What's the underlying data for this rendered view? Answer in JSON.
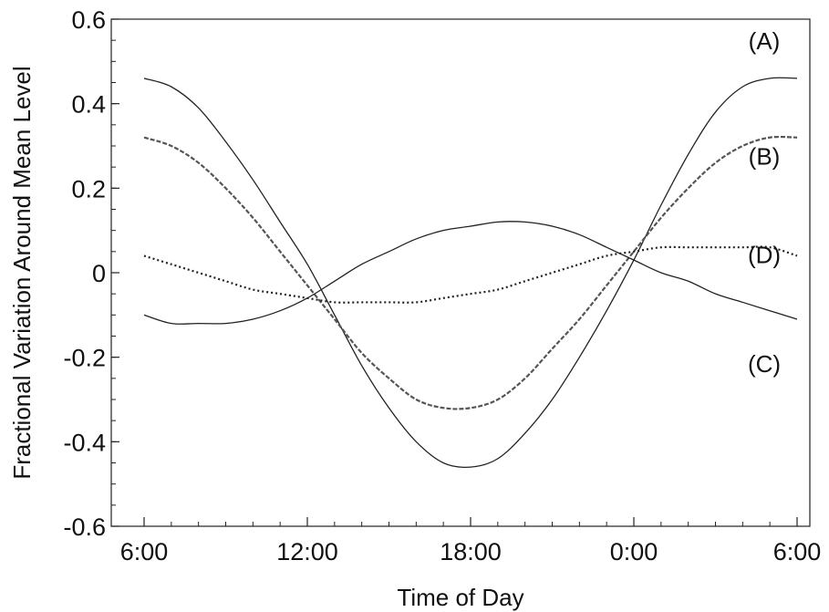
{
  "chart_data": {
    "type": "line",
    "title": "",
    "xlabel": "Time of Day",
    "ylabel": "Fractional Variation Around Mean Level",
    "x_tick_labels": [
      "6:00",
      "12:00",
      "18:00",
      "0:00",
      "6:00"
    ],
    "x_tick_hours": [
      6,
      12,
      18,
      24,
      30
    ],
    "xlim_hours": [
      6,
      30
    ],
    "y_tick_labels": [
      "0.6",
      "0.4",
      "0.2",
      "0",
      "-0.2",
      "-0.4",
      "-0.6"
    ],
    "y_tick_values": [
      0.6,
      0.4,
      0.2,
      0,
      -0.2,
      -0.4,
      -0.6
    ],
    "ylim": [
      -0.6,
      0.6
    ],
    "grid": false,
    "legend": "none",
    "series": [
      {
        "name": "(A)",
        "style": "solid",
        "color": "#222222",
        "x": [
          6,
          7,
          8,
          9,
          10,
          11,
          12,
          13,
          14,
          15,
          16,
          17,
          18,
          19,
          20,
          21,
          22,
          23,
          24,
          25,
          26,
          27,
          28,
          29,
          30
        ],
        "y": [
          0.46,
          0.44,
          0.39,
          0.31,
          0.22,
          0.12,
          0.02,
          -0.1,
          -0.22,
          -0.32,
          -0.4,
          -0.45,
          -0.46,
          -0.44,
          -0.38,
          -0.3,
          -0.2,
          -0.09,
          0.03,
          0.16,
          0.28,
          0.38,
          0.44,
          0.46,
          0.46
        ]
      },
      {
        "name": "(B)",
        "style": "dashed",
        "color": "#555555",
        "x": [
          6,
          7,
          8,
          9,
          10,
          11,
          12,
          13,
          14,
          15,
          16,
          17,
          18,
          19,
          20,
          21,
          22,
          23,
          24,
          25,
          26,
          27,
          28,
          29,
          30
        ],
        "y": [
          0.32,
          0.3,
          0.26,
          0.2,
          0.13,
          0.05,
          -0.03,
          -0.11,
          -0.19,
          -0.25,
          -0.3,
          -0.32,
          -0.32,
          -0.3,
          -0.25,
          -0.18,
          -0.11,
          -0.03,
          0.05,
          0.13,
          0.2,
          0.26,
          0.3,
          0.32,
          0.32
        ]
      },
      {
        "name": "(C)",
        "style": "solid",
        "color": "#222222",
        "x": [
          6,
          7,
          8,
          9,
          10,
          11,
          12,
          13,
          14,
          15,
          16,
          17,
          18,
          19,
          20,
          21,
          22,
          23,
          24,
          25,
          26,
          27,
          28,
          29,
          30
        ],
        "y": [
          -0.1,
          -0.12,
          -0.12,
          -0.12,
          -0.11,
          -0.09,
          -0.06,
          -0.02,
          0.02,
          0.05,
          0.08,
          0.1,
          0.11,
          0.12,
          0.12,
          0.11,
          0.09,
          0.06,
          0.03,
          0.0,
          -0.02,
          -0.05,
          -0.07,
          -0.09,
          -0.11
        ]
      },
      {
        "name": "(D)",
        "style": "dotted",
        "color": "#222222",
        "x": [
          6,
          7,
          8,
          9,
          10,
          11,
          12,
          13,
          14,
          15,
          16,
          17,
          18,
          19,
          20,
          21,
          22,
          23,
          24,
          25,
          26,
          27,
          28,
          29,
          30
        ],
        "y": [
          0.04,
          0.02,
          0.0,
          -0.02,
          -0.04,
          -0.05,
          -0.06,
          -0.07,
          -0.07,
          -0.07,
          -0.07,
          -0.06,
          -0.05,
          -0.04,
          -0.02,
          0.0,
          0.02,
          0.04,
          0.05,
          0.06,
          0.06,
          0.06,
          0.06,
          0.06,
          0.04
        ]
      }
    ]
  }
}
